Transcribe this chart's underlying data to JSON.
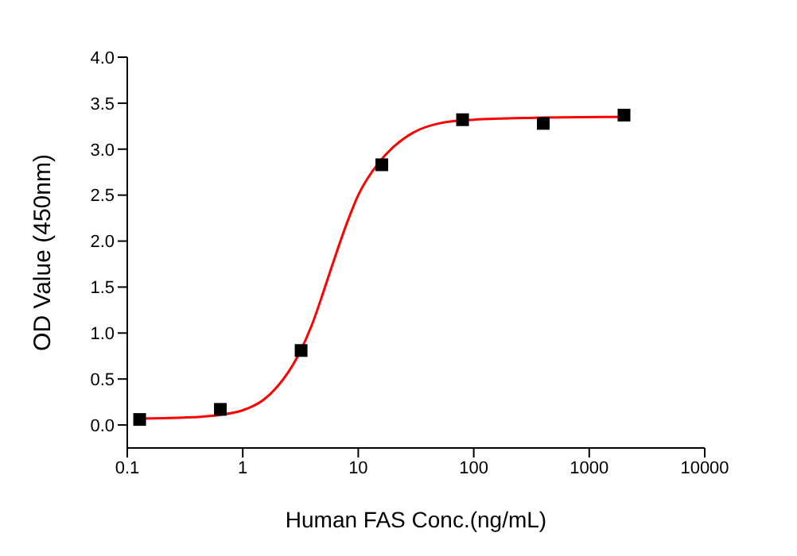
{
  "chart_data": {
    "type": "scatter",
    "xlabel": "Human FAS Conc.(ng/mL)",
    "ylabel": "OD Value (450nm)",
    "log": "x",
    "xlim": [
      0.1,
      10000
    ],
    "xticks": [
      0.1,
      1,
      10,
      100,
      1000,
      10000
    ],
    "ylim": [
      -0.25,
      4.0
    ],
    "yticks": [
      {
        "value": 0,
        "label": "0.0"
      },
      0.5,
      {
        "value": 1,
        "label": "1.0"
      },
      1.5,
      {
        "value": 2,
        "label": "2.0"
      },
      2.5,
      {
        "value": 3,
        "label": "3.0"
      },
      3.5,
      {
        "value": 4,
        "label": "4.0"
      }
    ],
    "grid": false,
    "legend": false,
    "marker": "square",
    "series": [
      {
        "color": "#000000",
        "x": [
          0.128,
          0.64,
          3.2,
          16,
          80,
          400,
          2000
        ],
        "values": [
          0.06,
          0.17,
          0.81,
          2.83,
          3.32,
          3.28,
          3.37
        ]
      },
      {
        "type": "line",
        "color": "#ff0000",
        "marker": "none",
        "x": [
          0.128,
          0.3,
          0.64,
          1,
          1.5,
          2,
          3,
          4,
          5,
          6,
          8,
          10,
          15,
          20,
          30,
          50,
          100,
          300,
          2000
        ],
        "values": [
          0.07,
          0.08,
          0.11,
          0.16,
          0.27,
          0.42,
          0.75,
          1.1,
          1.45,
          1.75,
          2.2,
          2.5,
          2.85,
          3.02,
          3.18,
          3.28,
          3.32,
          3.34,
          3.35
        ]
      }
    ]
  }
}
